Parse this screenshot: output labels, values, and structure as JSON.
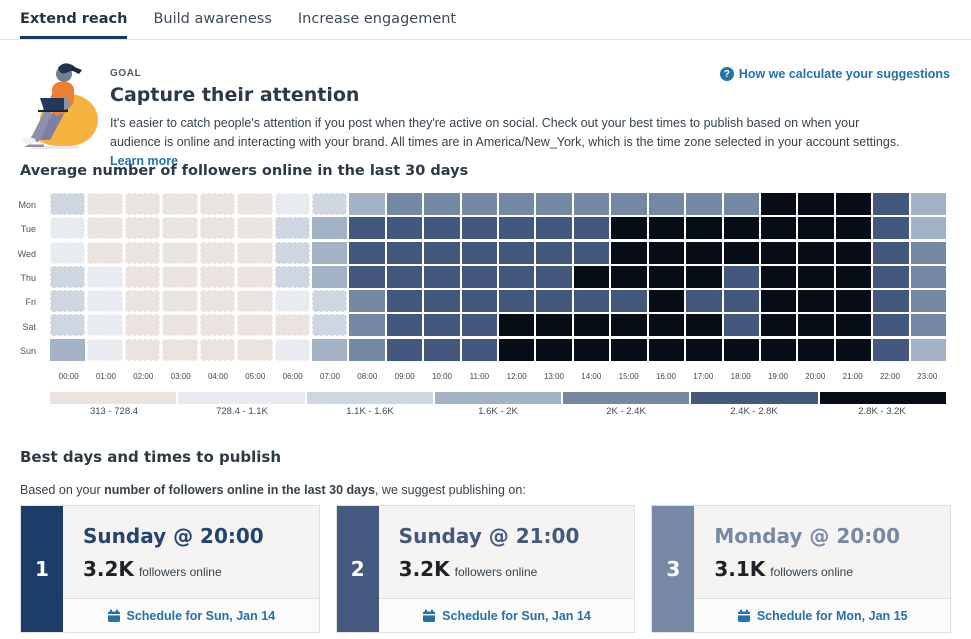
{
  "tabs": {
    "items": [
      {
        "label": "Extend reach",
        "active": true
      },
      {
        "label": "Build awareness",
        "active": false
      },
      {
        "label": "Increase engagement",
        "active": false
      }
    ]
  },
  "header": {
    "help_link": "How we calculate your suggestions",
    "help_icon": "?",
    "goal_label": "GOAL",
    "title": "Capture their attention",
    "description": "It's easier to catch people's attention if you post when they're active on social. Check out your best times to publish based on when your audience is online and interacting with your brand. All times are in America/New_York, which is the time zone selected in your account settings.",
    "learn_more": "Learn more"
  },
  "chart_data": {
    "type": "heatmap",
    "title": "Average number of followers online in the last 30 days",
    "rows": [
      "Mon",
      "Tue",
      "Wed",
      "Thu",
      "Fri",
      "Sat",
      "Sun"
    ],
    "columns": [
      "00:00",
      "01:00",
      "02:00",
      "03:00",
      "04:00",
      "05:00",
      "06:00",
      "07:00",
      "08:00",
      "09:00",
      "10:00",
      "11:00",
      "12:00",
      "13:00",
      "14:00",
      "15:00",
      "16:00",
      "17:00",
      "18:00",
      "19:00",
      "20:00",
      "21:00",
      "22:00",
      "23:00"
    ],
    "legend": [
      {
        "label": "313 - 728.4",
        "color": "#eae3df"
      },
      {
        "label": "728.4 - 1.1K",
        "color": "#e8ebf0"
      },
      {
        "label": "1.1K - 1.6K",
        "color": "#cdd6e1"
      },
      {
        "label": "1.6K - 2K",
        "color": "#a4b2c5"
      },
      {
        "label": "2K - 2.4K",
        "color": "#7488a4"
      },
      {
        "label": "2.4K - 2.8K",
        "color": "#44587e"
      },
      {
        "label": "2.8K - 3.2K",
        "color": "#060d17"
      }
    ],
    "values_are_legend_levels": true,
    "values": [
      [
        3,
        1,
        1,
        1,
        1,
        1,
        2,
        3,
        4,
        5,
        5,
        5,
        5,
        5,
        5,
        5,
        5,
        5,
        5,
        7,
        7,
        7,
        6,
        4
      ],
      [
        2,
        1,
        1,
        1,
        1,
        1,
        3,
        4,
        6,
        6,
        6,
        6,
        6,
        6,
        6,
        7,
        7,
        7,
        7,
        7,
        7,
        7,
        6,
        4
      ],
      [
        2,
        1,
        1,
        1,
        1,
        1,
        3,
        4,
        6,
        6,
        6,
        6,
        6,
        6,
        6,
        7,
        7,
        7,
        7,
        7,
        7,
        7,
        6,
        5
      ],
      [
        3,
        2,
        1,
        1,
        1,
        1,
        3,
        4,
        6,
        6,
        6,
        6,
        6,
        6,
        7,
        7,
        7,
        7,
        6,
        7,
        7,
        7,
        6,
        5
      ],
      [
        3,
        2,
        1,
        1,
        1,
        1,
        2,
        3,
        5,
        6,
        6,
        6,
        6,
        6,
        6,
        6,
        7,
        6,
        6,
        7,
        7,
        7,
        6,
        5
      ],
      [
        3,
        2,
        1,
        1,
        1,
        1,
        1,
        3,
        5,
        6,
        6,
        6,
        7,
        7,
        7,
        7,
        7,
        7,
        6,
        7,
        7,
        7,
        6,
        5
      ],
      [
        4,
        2,
        1,
        1,
        1,
        1,
        2,
        4,
        5,
        6,
        6,
        6,
        7,
        7,
        7,
        7,
        7,
        7,
        7,
        7,
        7,
        7,
        6,
        4
      ]
    ]
  },
  "best": {
    "title": "Best days and times to publish",
    "intro_prefix": "Based on your ",
    "intro_bold": "number of followers online in the last 30 days",
    "intro_suffix": ", we suggest publishing on:",
    "cards": [
      {
        "rank": "1",
        "heading": "Sunday @ 20:00",
        "value": "3.2K",
        "value_suffix": "followers online",
        "schedule_label": "Schedule for Sun, Jan 14",
        "accent": "#1e3c68",
        "heading_color": "#24446f"
      },
      {
        "rank": "2",
        "heading": "Sunday @ 21:00",
        "value": "3.2K",
        "value_suffix": "followers online",
        "schedule_label": "Schedule for Sun, Jan 14",
        "accent": "#46597e",
        "heading_color": "#44587e"
      },
      {
        "rank": "3",
        "heading": "Monday @ 20:00",
        "value": "3.1K",
        "value_suffix": "followers online",
        "schedule_label": "Schedule for Mon, Jan 15",
        "accent": "#7889a6",
        "heading_color": "#7889a6"
      }
    ]
  }
}
